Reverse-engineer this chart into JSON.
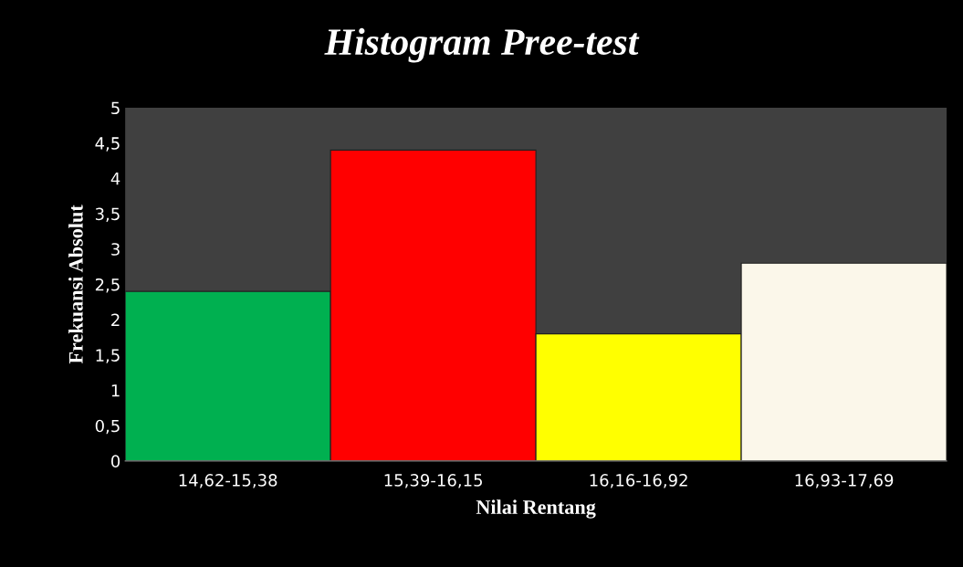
{
  "chart_data": {
    "type": "bar",
    "title": "Histogram Pree-test",
    "xlabel": "Nilai Rentang",
    "ylabel": "Frekuansi Absolut",
    "categories": [
      "14,62-15,38",
      "15,39-16,15",
      "16,16-16,92",
      "16,93-17,69"
    ],
    "values": [
      2.4,
      4.4,
      1.8,
      2.8
    ],
    "colors": [
      "#00b050",
      "#ff0000",
      "#ffff00",
      "#fbf7ea"
    ],
    "ylim": [
      0,
      5
    ],
    "yticks": [
      0,
      {
        "value": 0.5,
        "label": "0,5"
      },
      1,
      {
        "value": 1.5,
        "label": "1,5"
      },
      2,
      {
        "value": 2.5,
        "label": "2,5"
      },
      3,
      {
        "value": 3.5,
        "label": "3,5"
      },
      4,
      {
        "value": 4.5,
        "label": "4,5"
      },
      5
    ]
  }
}
